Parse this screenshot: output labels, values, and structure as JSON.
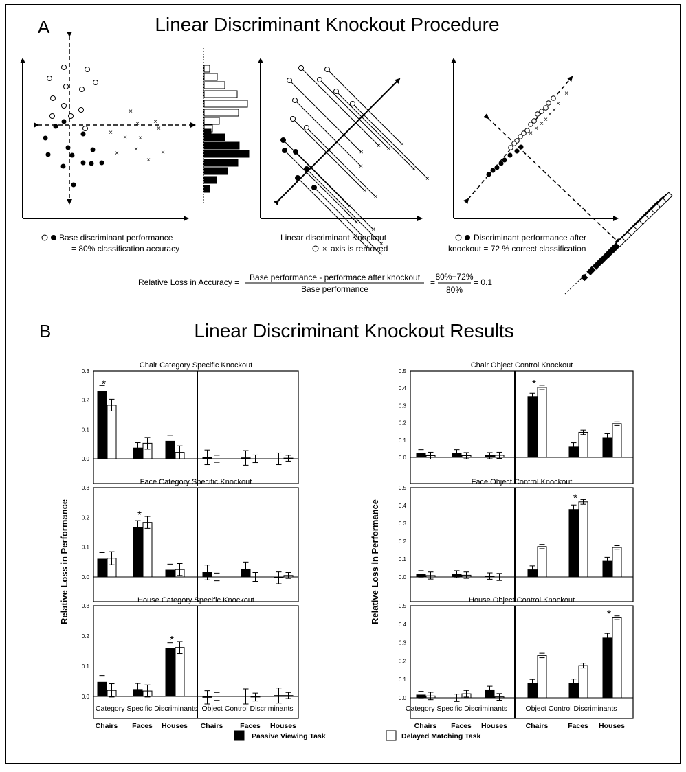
{
  "panel_a": {
    "letter": "A",
    "title": "Linear Discriminant Knockout Procedure",
    "caption1_line1": "Base discriminant performance",
    "caption1_line2": "= 80% classification accuracy",
    "caption2_line1": "Linear discriminant Knockout",
    "caption2_line2": "axis is removed",
    "caption3_line1": "Discriminant performance after",
    "caption3_line2": "knockout = 72 % correct classification",
    "formula_lhs": "Relative Loss in Accuracy =",
    "formula_num": "Base performance - performace after knockout",
    "formula_den": "Base performance",
    "formula_eq": "=",
    "formula_num2": "80%−72%",
    "formula_den2": "80%",
    "formula_result": "= 0.1"
  },
  "panel_b": {
    "letter": "B",
    "title": "Linear Discriminant Knockout Results",
    "ylabel": "Relative Loss in Performance",
    "xgroup_left": "Category Specific Discriminants",
    "xgroup_right": "Object Control Discriminants",
    "legend": [
      {
        "label": "Passive Viewing Task",
        "color": "#000000"
      },
      {
        "label": "Delayed Matching Task",
        "color": "#ffffff"
      }
    ]
  },
  "chart_data": [
    {
      "type": "bar",
      "title": "Chair Category Specific Knockout",
      "ylim": [
        0,
        0.3
      ],
      "yticks": [
        "0.0",
        "0.1",
        "0.2",
        "0.3"
      ],
      "categories": [
        "Chairs",
        "Faces",
        "Houses",
        "Chairs",
        "Faces",
        "Houses"
      ],
      "series": [
        {
          "name": "Passive Viewing Task",
          "values": [
            0.23,
            0.037,
            0.06,
            0.005,
            0.003,
            0.0
          ],
          "errors": [
            0.02,
            0.018,
            0.02,
            0.025,
            0.025,
            0.02
          ]
        },
        {
          "name": "Delayed Matching Task",
          "values": [
            0.183,
            0.053,
            0.022,
            0.0,
            0.0,
            0.002
          ],
          "errors": [
            0.02,
            0.02,
            0.022,
            0.012,
            0.013,
            0.01
          ]
        }
      ],
      "significant": [
        0
      ]
    },
    {
      "type": "bar",
      "title": "Face Category Specific Knockout",
      "ylim": [
        0,
        0.3
      ],
      "yticks": [
        "0.0",
        "0.1",
        "0.2",
        "0.3"
      ],
      "categories": [
        "Chairs",
        "Faces",
        "Houses",
        "Chairs",
        "Faces",
        "Houses"
      ],
      "series": [
        {
          "name": "Passive Viewing Task",
          "values": [
            0.06,
            0.167,
            0.023,
            0.015,
            0.025,
            -0.003
          ],
          "errors": [
            0.022,
            0.022,
            0.02,
            0.025,
            0.025,
            0.02
          ]
        },
        {
          "name": "Delayed Matching Task",
          "values": [
            0.063,
            0.183,
            0.025,
            0.0,
            0.0,
            0.005
          ],
          "errors": [
            0.022,
            0.02,
            0.02,
            0.013,
            0.015,
            0.01
          ]
        }
      ],
      "significant": [
        1
      ]
    },
    {
      "type": "bar",
      "title": "House Category Specific Knockout",
      "ylim": [
        0,
        0.3
      ],
      "yticks": [
        "0.0",
        "0.1",
        "0.2",
        "0.3"
      ],
      "categories": [
        "Chairs",
        "Faces",
        "Houses",
        "Chairs",
        "Faces",
        "Houses"
      ],
      "series": [
        {
          "name": "Passive Viewing Task",
          "values": [
            0.047,
            0.023,
            0.158,
            -0.003,
            0.0,
            0.003
          ],
          "errors": [
            0.022,
            0.02,
            0.02,
            0.022,
            0.025,
            0.025
          ]
        },
        {
          "name": "Delayed Matching Task",
          "values": [
            0.02,
            0.018,
            0.162,
            0.0,
            -0.002,
            0.003
          ],
          "errors": [
            0.022,
            0.02,
            0.02,
            0.013,
            0.013,
            0.01
          ]
        }
      ],
      "significant": [
        2
      ]
    },
    {
      "type": "bar",
      "title": "Chair Object Control Knockout",
      "ylim": [
        0,
        0.5
      ],
      "yticks": [
        "0.0",
        "0.1",
        "0.2",
        "0.3",
        "0.4",
        "0.5"
      ],
      "categories": [
        "Chairs",
        "Faces",
        "Houses",
        "Chairs",
        "Faces",
        "Houses"
      ],
      "series": [
        {
          "name": "Passive Viewing Task",
          "values": [
            0.025,
            0.025,
            0.01,
            0.35,
            0.06,
            0.115
          ],
          "errors": [
            0.02,
            0.02,
            0.018,
            0.022,
            0.025,
            0.022
          ]
        },
        {
          "name": "Delayed Matching Task",
          "values": [
            0.01,
            0.01,
            0.012,
            0.405,
            0.145,
            0.195
          ],
          "errors": [
            0.02,
            0.018,
            0.018,
            0.012,
            0.013,
            0.01
          ]
        }
      ],
      "significant": [
        3
      ]
    },
    {
      "type": "bar",
      "title": "Face Object Control Knockout",
      "ylim": [
        0,
        0.5
      ],
      "yticks": [
        "0.0",
        "0.1",
        "0.2",
        "0.3",
        "0.4",
        "0.5"
      ],
      "categories": [
        "Chairs",
        "Faces",
        "Houses",
        "Chairs",
        "Faces",
        "Houses"
      ],
      "series": [
        {
          "name": "Passive Viewing Task",
          "values": [
            0.015,
            0.015,
            0.005,
            0.04,
            0.378,
            0.088
          ],
          "errors": [
            0.02,
            0.02,
            0.018,
            0.022,
            0.025,
            0.022
          ]
        },
        {
          "name": "Delayed Matching Task",
          "values": [
            0.008,
            0.01,
            0.0,
            0.17,
            0.42,
            0.165
          ],
          "errors": [
            0.02,
            0.018,
            0.02,
            0.012,
            0.013,
            0.01
          ]
        }
      ],
      "significant": [
        4
      ]
    },
    {
      "type": "bar",
      "title": "House Object Control Knockout",
      "ylim": [
        0,
        0.5
      ],
      "yticks": [
        "0.0",
        "0.1",
        "0.2",
        "0.3",
        "0.4",
        "0.5"
      ],
      "categories": [
        "Chairs",
        "Faces",
        "Houses",
        "Chairs",
        "Faces",
        "Houses"
      ],
      "series": [
        {
          "name": "Passive Viewing Task",
          "values": [
            0.015,
            0.0,
            0.043,
            0.078,
            0.077,
            0.325
          ],
          "errors": [
            0.02,
            0.02,
            0.02,
            0.022,
            0.025,
            0.025
          ]
        },
        {
          "name": "Delayed Matching Task",
          "values": [
            0.01,
            0.022,
            0.005,
            0.23,
            0.175,
            0.435
          ],
          "errors": [
            0.02,
            0.018,
            0.018,
            0.012,
            0.013,
            0.01
          ]
        }
      ],
      "significant": [
        5
      ]
    }
  ]
}
